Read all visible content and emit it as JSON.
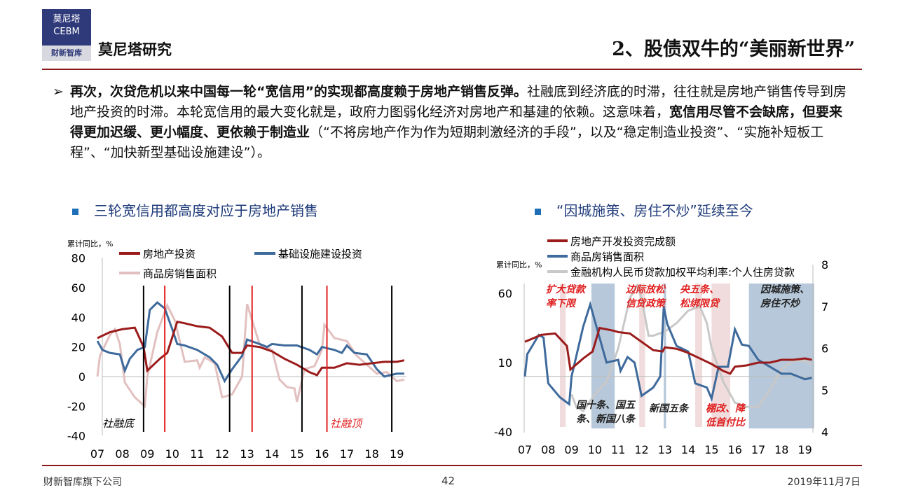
{
  "header": {
    "logo_line1": "莫尼塔",
    "logo_line2": "CEBM",
    "logo_line3": "财新智库",
    "brand": "莫尼塔研究",
    "title": "2、股债双牛的“美丽新世界”"
  },
  "body": {
    "bullet": "➢",
    "seg1": "再次，次贷危机以来中国每一轮“宽信用”的实现都高度赖于房地产销售反弹。",
    "seg2": "社融底到经济底的时滞，往往就是房地产销售传导到房地产投资的时滞。本轮宽信用的最大变化就是，政府力图弱化经济对房地产和基建的依赖。这意味着，",
    "seg3": "宽信用尽管不会缺席，但要来得更加迟缓、更小幅度、更依赖于制造业",
    "seg4": "（“不将房地产作为作为短期刺激经济的手段”，以及“稳定制造业投资”、“实施补短板工程”、“加快新型基础设施建设”）。"
  },
  "subtitles": {
    "left": "三轮宽信用都高度对应于房地产销售",
    "right": "“因城施策、房住不炒”延续至今"
  },
  "footer": {
    "company": "财新智库旗下公司",
    "page": "42",
    "date": "2019年11月7日"
  },
  "colors": {
    "red": "#9b1b1b",
    "blue": "#3e6a9c",
    "pink": "#e3c0c0",
    "grey": "#c8c8c8",
    "accent": "#e02020"
  },
  "chart_data": [
    {
      "type": "line",
      "ylabel": "累计同比，%",
      "ylim": [
        -40,
        80
      ],
      "yticks": [
        80,
        60,
        40,
        20,
        0,
        -20,
        -40
      ],
      "xticks": [
        "07",
        "08",
        "09",
        "10",
        "11",
        "12",
        "13",
        "14",
        "15",
        "16",
        "17",
        "18",
        "19"
      ],
      "series": [
        {
          "name": "房地产投资",
          "color": "#9b1b1b",
          "x": [
            7,
            7.5,
            8,
            8.5,
            8.85,
            9,
            9.5,
            9.8,
            10.2,
            10.5,
            11,
            11.5,
            12,
            12.4,
            12.8,
            13,
            13.5,
            14,
            14.5,
            15,
            15.5,
            15.8,
            16,
            16.5,
            17,
            17.5,
            18,
            18.5,
            19,
            19.3
          ],
          "y": [
            26,
            30,
            32,
            33,
            20,
            4,
            12,
            16,
            37,
            36,
            34,
            33,
            27,
            16,
            16,
            21,
            20,
            17,
            12,
            8,
            3,
            1,
            6,
            6,
            9,
            8,
            9,
            10,
            10,
            11
          ]
        },
        {
          "name": "基础设施建设投资",
          "color": "#3e6a9c",
          "x": [
            7,
            7.2,
            7.5,
            7.9,
            8.1,
            8.3,
            8.6,
            8.9,
            9.1,
            9.4,
            9.7,
            10,
            10.2,
            10.5,
            11,
            11.5,
            11.8,
            12.1,
            12.4,
            12.8,
            13,
            13.5,
            13.8,
            14,
            14.5,
            15,
            15.5,
            15.8,
            16,
            16.5,
            16.8,
            17,
            17.3,
            17.8,
            18.2,
            18.5,
            19,
            19.3
          ],
          "y": [
            24,
            18,
            16,
            15,
            4,
            12,
            18,
            20,
            45,
            50,
            46,
            32,
            22,
            21,
            18,
            13,
            8,
            -3,
            5,
            14,
            25,
            22,
            20,
            22,
            21,
            21,
            18,
            15,
            20,
            18,
            16,
            21,
            16,
            15,
            5,
            0,
            2,
            2
          ]
        },
        {
          "name": "商品房销售面积",
          "color": "#e3c0c0",
          "x": [
            7,
            7.1,
            7.5,
            7.7,
            7.9,
            8.1,
            8.5,
            8.9,
            9,
            9.4,
            9.8,
            10.1,
            10.5,
            11,
            11.1,
            11.3,
            11.7,
            12,
            12.4,
            12.8,
            13,
            13.2,
            13.5,
            14,
            14.3,
            14.6,
            14.9,
            15,
            15.3,
            15.7,
            16,
            16.1,
            16.5,
            17,
            17.4,
            17.8,
            18.2,
            18.6,
            19,
            19.3
          ],
          "y": [
            0,
            14,
            28,
            32,
            22,
            -4,
            -14,
            -20,
            0,
            30,
            48,
            38,
            10,
            11,
            6,
            13,
            9,
            -14,
            -12,
            0,
            49,
            38,
            22,
            18,
            -2,
            -7,
            -8,
            -17,
            5,
            7,
            18,
            35,
            26,
            24,
            14,
            8,
            2,
            3,
            -3,
            -2
          ]
        }
      ],
      "markers": {
        "black": [
          8.85,
          12.3,
          15.2,
          18.8
        ],
        "red": [
          9.7,
          13.2,
          16.2
        ]
      },
      "annotations": {
        "bottom_label": "社融底",
        "top_label": "社融顶"
      }
    },
    {
      "type": "line",
      "ylabel": "累计同比，%",
      "ylim": [
        -40,
        60
      ],
      "yticks": [
        60,
        10,
        -40
      ],
      "y2lim": [
        4,
        8
      ],
      "y2ticks": [
        8,
        7,
        6,
        5,
        4
      ],
      "xticks": [
        "07",
        "08",
        "09",
        "10",
        "11",
        "12",
        "13",
        "14",
        "15",
        "16",
        "17",
        "18",
        "19"
      ],
      "series": [
        {
          "name": "房地产开发投资完成额",
          "color": "#9b1b1b",
          "axis": "left",
          "x": [
            7,
            7.7,
            8.3,
            8.8,
            8.95,
            9.5,
            9.9,
            10.2,
            10.8,
            11,
            11.5,
            12,
            12.5,
            12.9,
            13,
            13.5,
            14,
            14.5,
            15,
            15.5,
            15.8,
            16,
            16.5,
            17,
            17.5,
            18,
            18.5,
            19,
            19.3
          ],
          "y": [
            25,
            30,
            31,
            22,
            5,
            13,
            18,
            35,
            33,
            32,
            31,
            25,
            19,
            18,
            21,
            20,
            17,
            13,
            9,
            4,
            2,
            7,
            8,
            10,
            10,
            12,
            12,
            13,
            12
          ]
        },
        {
          "name": "商品房销售面积",
          "color": "#3e6a9c",
          "axis": "left",
          "x": [
            7,
            7.1,
            7.6,
            7.8,
            8,
            8.5,
            8.9,
            9,
            9.5,
            9.8,
            10,
            10.5,
            11,
            11.1,
            11.4,
            11.7,
            12,
            12.5,
            12.8,
            12.95,
            13.1,
            13.5,
            14,
            14.3,
            14.8,
            15,
            15.3,
            15.7,
            16,
            16.3,
            16.6,
            17,
            17.5,
            18,
            18.4,
            19,
            19.3
          ],
          "y": [
            0,
            16,
            30,
            28,
            -5,
            -15,
            -20,
            0,
            36,
            52,
            40,
            10,
            12,
            4,
            14,
            10,
            -14,
            -8,
            0,
            50,
            38,
            22,
            18,
            -5,
            -8,
            -16,
            7,
            7,
            34,
            23,
            22,
            12,
            7,
            2,
            2,
            -2,
            -1
          ]
        },
        {
          "name": "金融机构人民币贷款加权平均利率:个人住房贷款",
          "color": "#c8c8c8",
          "axis": "right",
          "x": [
            9,
            9.2,
            9.5,
            10,
            10.5,
            11,
            11.5,
            11.8,
            12,
            12.3,
            12.5,
            13,
            13.5,
            14,
            14.5,
            14.8,
            15,
            15.5,
            16,
            16.5,
            17,
            17.5,
            18,
            18.5,
            19,
            19.3
          ],
          "y": [
            4.9,
            4.6,
            4.5,
            4.9,
            5.2,
            6,
            7.2,
            7.5,
            7.2,
            6.3,
            6.3,
            6.4,
            6.6,
            6.9,
            7,
            6.6,
            6,
            5.2,
            4.7,
            4.6,
            4.6,
            5,
            5.5,
            5.7,
            5.7,
            5.6
          ]
        }
      ],
      "bands": {
        "pink": [
          [
            8.5,
            8.75
          ],
          [
            11.9,
            12.15
          ],
          [
            14.3,
            14.6
          ],
          [
            15,
            15.8
          ]
        ],
        "blue": [
          [
            9.85,
            10.85
          ],
          [
            12.95,
            13.05
          ],
          [
            16.6,
            19.4
          ]
        ]
      },
      "annotations": [
        {
          "text": "扩大贷款率下限",
          "l1": "扩大贷款",
          "l2": "率下限",
          "color": "#e02020"
        },
        {
          "text": "国十条、国五条、新国八条",
          "l1": "国十条、国五",
          "l2": "条、新国八条",
          "color": "#222"
        },
        {
          "text": "边际放松信贷政策",
          "l1": "边际放松",
          "l2": "信贷政策",
          "color": "#e02020"
        },
        {
          "text": "新国五条",
          "l1": "新国五条",
          "l2": "",
          "color": "#222"
        },
        {
          "text": "央五条、松绑限贷",
          "l1": "央五条、",
          "l2": "松绑限贷",
          "color": "#e02020"
        },
        {
          "text": "棚改、降低首付比",
          "l1": "棚改、降",
          "l2": "低首付比",
          "color": "#e02020"
        },
        {
          "text": "因城施策、房住不炒",
          "l1": "因城施策、",
          "l2": "房住不炒",
          "color": "#222"
        }
      ]
    }
  ]
}
